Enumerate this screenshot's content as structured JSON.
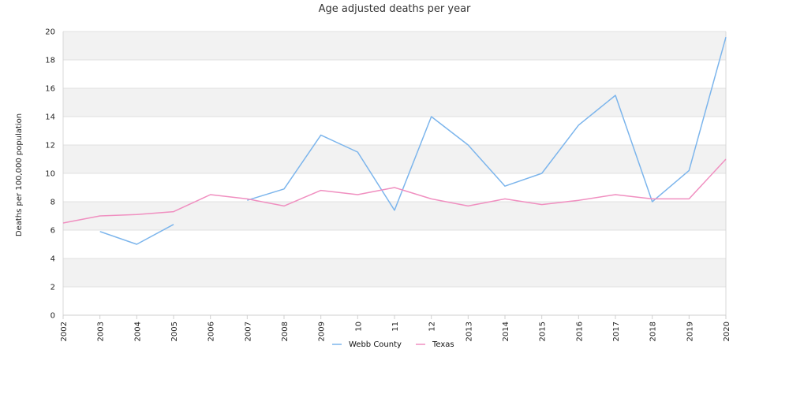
{
  "chart_data": {
    "type": "line",
    "title": "Age adjusted deaths per year",
    "xlabel": "",
    "ylabel": "Deaths per 100,000 population",
    "categories": [
      "2002",
      "2003",
      "2004",
      "2005",
      "2006",
      "2007",
      "2008",
      "2009",
      "10",
      "11",
      "12",
      "2013",
      "2014",
      "2015",
      "2016",
      "2017",
      "2018",
      "2019",
      "2020"
    ],
    "ylim": [
      0,
      20
    ],
    "yticks": [
      0,
      2,
      4,
      6,
      8,
      10,
      12,
      14,
      16,
      18,
      20
    ],
    "grid": "alternating horizontal bands",
    "legend_position": "bottom-center",
    "series": [
      {
        "name": "Webb County",
        "color": "#7cb5ec",
        "values": [
          null,
          5.9,
          5.0,
          6.4,
          null,
          8.1,
          8.9,
          12.7,
          11.5,
          7.4,
          14.0,
          12.0,
          9.1,
          10.0,
          13.4,
          15.5,
          8.0,
          10.2,
          19.6
        ]
      },
      {
        "name": "Texas",
        "color": "#f08fc0",
        "values": [
          6.5,
          7.0,
          7.1,
          7.3,
          8.5,
          8.2,
          7.7,
          8.8,
          8.5,
          9.0,
          8.2,
          7.7,
          8.2,
          7.8,
          8.1,
          8.5,
          8.2,
          8.2,
          11.0
        ]
      }
    ]
  }
}
